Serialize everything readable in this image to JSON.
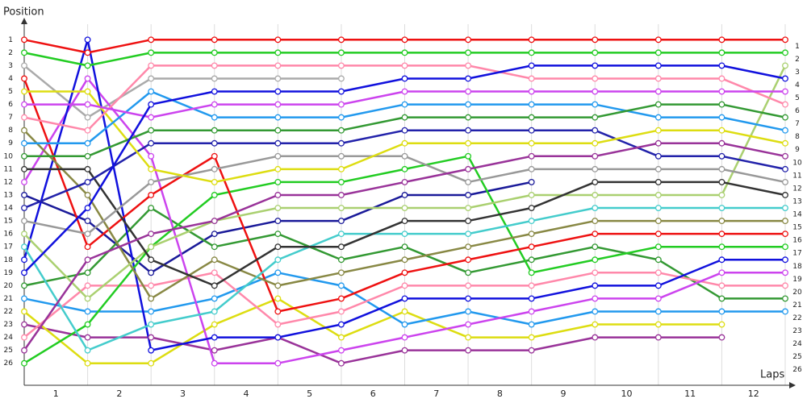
{
  "chart_data": {
    "type": "line",
    "ylabel": "Position",
    "xlabel": "Laps",
    "categories": [
      "1",
      "2",
      "3",
      "4",
      "5",
      "6",
      "7",
      "8",
      "9",
      "10",
      "11",
      "12"
    ],
    "x": [
      0,
      1,
      2,
      3,
      4,
      5,
      6,
      7,
      8,
      9,
      10,
      11,
      12
    ],
    "xlim": [
      0,
      12
    ],
    "ylim": [
      27.7,
      -0.7
    ],
    "yticks": [
      1,
      2,
      3,
      4,
      5,
      6,
      7,
      8,
      9,
      10,
      11,
      12,
      13,
      14,
      15,
      16,
      17,
      18,
      19,
      20,
      21,
      22,
      23,
      24,
      25,
      26
    ],
    "grid": true,
    "series": [
      {
        "color": "#aaaaaa",
        "values": [
          3,
          7,
          4,
          4,
          4,
          4,
          null,
          null,
          null,
          null,
          null,
          null,
          null
        ]
      },
      {
        "color": "#1a1a99",
        "values": [
          13,
          15,
          19,
          16,
          15,
          15,
          13,
          13,
          12,
          null,
          null,
          null,
          null
        ]
      },
      {
        "color": "#993399",
        "values": [
          23,
          24,
          24,
          25,
          24,
          26,
          25,
          25,
          25,
          24,
          24,
          24,
          null
        ]
      },
      {
        "color": "#dddd11",
        "values": [
          22,
          26,
          26,
          23,
          21,
          24,
          22,
          24,
          24,
          23,
          23,
          23,
          null
        ]
      },
      {
        "color": "#2299ee",
        "values": [
          21,
          22,
          22,
          21,
          19,
          20,
          23,
          22,
          23,
          22,
          22,
          22,
          22
        ]
      },
      {
        "color": "#339933",
        "values": [
          20,
          19,
          14,
          17,
          16,
          18,
          17,
          19,
          18,
          17,
          18,
          21,
          21
        ]
      },
      {
        "color": "#ff88aa",
        "values": [
          24,
          20,
          20,
          19,
          23,
          22,
          20,
          20,
          20,
          19,
          19,
          20,
          20
        ]
      },
      {
        "color": "#cc44ee",
        "values": [
          12,
          4,
          10,
          26,
          26,
          25,
          24,
          23,
          22,
          21,
          21,
          19,
          19
        ]
      },
      {
        "color": "#1111dd",
        "values": [
          18,
          1,
          25,
          24,
          24,
          23,
          21,
          21,
          21,
          20,
          20,
          18,
          18
        ]
      },
      {
        "color": "#22cc22",
        "values": [
          26,
          23,
          17,
          13,
          12,
          12,
          11,
          10,
          19,
          18,
          17,
          17,
          17
        ]
      },
      {
        "color": "#ee1111",
        "values": [
          4,
          17,
          13,
          10,
          22,
          21,
          19,
          18,
          17,
          16,
          16,
          16,
          16
        ]
      },
      {
        "color": "#888844",
        "values": [
          8,
          13,
          21,
          18,
          20,
          19,
          18,
          17,
          16,
          15,
          15,
          15,
          15
        ]
      },
      {
        "color": "#44cccc",
        "values": [
          17,
          25,
          23,
          22,
          18,
          16,
          16,
          16,
          15,
          14,
          14,
          14,
          14
        ]
      },
      {
        "color": "#aad070",
        "values": [
          16,
          21,
          17,
          15,
          14,
          14,
          14,
          14,
          13,
          13,
          13,
          13,
          3
        ]
      },
      {
        "color": "#333333",
        "values": [
          11,
          11,
          18,
          20,
          17,
          17,
          15,
          15,
          14,
          12,
          12,
          12,
          13
        ]
      },
      {
        "color": "#999999",
        "values": [
          15,
          16,
          12,
          11,
          10,
          10,
          10,
          12,
          11,
          11,
          11,
          11,
          12
        ]
      },
      {
        "color": "#2222aa",
        "values": [
          14,
          12,
          9,
          9,
          9,
          9,
          8,
          8,
          8,
          8,
          10,
          10,
          11
        ]
      },
      {
        "color": "#993399",
        "values": [
          25,
          18,
          16,
          15,
          13,
          13,
          12,
          11,
          10,
          10,
          9,
          9,
          10
        ]
      },
      {
        "color": "#dddd11",
        "values": [
          5,
          5,
          11,
          12,
          11,
          11,
          9,
          9,
          9,
          9,
          8,
          8,
          9
        ]
      },
      {
        "color": "#2299ee",
        "values": [
          9,
          9,
          5,
          7,
          7,
          7,
          6,
          6,
          6,
          6,
          7,
          7,
          8
        ]
      },
      {
        "color": "#339933",
        "values": [
          10,
          10,
          8,
          8,
          8,
          8,
          7,
          7,
          7,
          7,
          6,
          6,
          7
        ]
      },
      {
        "color": "#ff88aa",
        "values": [
          7,
          8,
          3,
          3,
          3,
          3,
          3,
          3,
          4,
          4,
          4,
          4,
          6
        ]
      },
      {
        "color": "#cc44ee",
        "values": [
          6,
          6,
          7,
          6,
          6,
          6,
          5,
          5,
          5,
          5,
          5,
          5,
          5
        ]
      },
      {
        "color": "#1111dd",
        "values": [
          19,
          14,
          6,
          5,
          5,
          5,
          4,
          4,
          3,
          3,
          3,
          3,
          4
        ]
      },
      {
        "color": "#22cc22",
        "values": [
          2,
          3,
          2,
          2,
          2,
          2,
          2,
          2,
          2,
          2,
          2,
          2,
          2
        ]
      },
      {
        "color": "#ee1111",
        "values": [
          1,
          2,
          1,
          1,
          1,
          1,
          1,
          1,
          1,
          1,
          1,
          1,
          1
        ]
      }
    ]
  }
}
